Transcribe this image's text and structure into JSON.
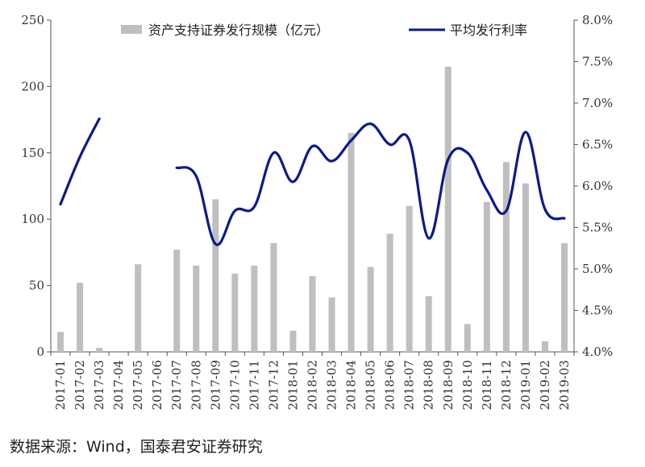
{
  "chart_data": {
    "type": "bar+line",
    "categories": [
      "2017-01",
      "2017-02",
      "2017-03",
      "2017-04",
      "2017-05",
      "2017-06",
      "2017-07",
      "2017-08",
      "2017-09",
      "2017-10",
      "2017-11",
      "2017-12",
      "2018-01",
      "2018-02",
      "2018-03",
      "2018-04",
      "2018-05",
      "2018-06",
      "2018-07",
      "2018-08",
      "2018-09",
      "2018-10",
      "2018-11",
      "2018-12",
      "2019-01",
      "2019-02",
      "2019-03"
    ],
    "series": [
      {
        "name": "资产支持证券发行规模（亿元）",
        "type": "bar",
        "axis": "left",
        "color": "#bfbfbf",
        "values": [
          15,
          52,
          3,
          0,
          66,
          0,
          77,
          65,
          115,
          59,
          65,
          82,
          16,
          57,
          41,
          165,
          64,
          89,
          110,
          42,
          215,
          21,
          113,
          143,
          127,
          8,
          82
        ]
      },
      {
        "name": "平均发行利率",
        "type": "line",
        "axis": "right",
        "color": "#0a1a8a",
        "values": [
          5.78,
          6.35,
          6.81,
          null,
          null,
          null,
          6.22,
          6.12,
          5.3,
          5.7,
          5.75,
          6.4,
          6.05,
          6.48,
          6.3,
          6.55,
          6.75,
          6.5,
          6.55,
          5.37,
          6.32,
          6.4,
          5.95,
          5.7,
          6.65,
          5.72,
          5.61
        ]
      }
    ],
    "y_left": {
      "min": 0,
      "max": 250,
      "ticks": [
        "0",
        "50",
        "100",
        "150",
        "200",
        "250"
      ]
    },
    "y_right": {
      "min": 4.0,
      "max": 8.0,
      "ticks": [
        "4.0%",
        "4.5%",
        "5.0%",
        "5.5%",
        "6.0%",
        "6.5%",
        "7.0%",
        "7.5%",
        "8.0%"
      ]
    },
    "legend": "top"
  },
  "source": "数据来源：Wind，国泰君安证券研究"
}
